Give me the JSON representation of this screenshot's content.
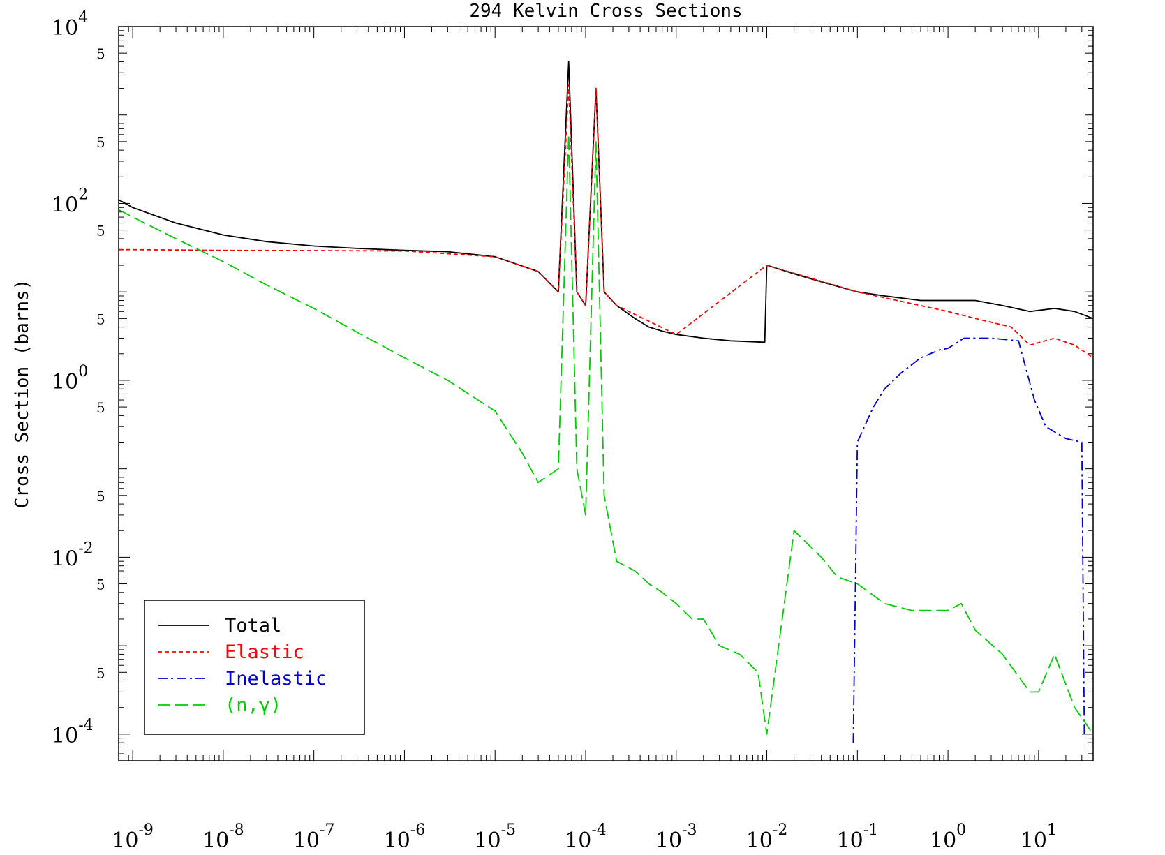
{
  "chart_data": {
    "type": "line",
    "title": "294 Kelvin Cross Sections",
    "xlabel": "",
    "ylabel": "Cross Section (barns)",
    "x_scale": "log",
    "y_scale": "log",
    "xlim": [
      7e-10,
      40
    ],
    "ylim": [
      5e-05,
      10000
    ],
    "x_ticks": [
      {
        "value": 1e-09,
        "base": "10",
        "exp": "-9"
      },
      {
        "value": 1e-08,
        "base": "10",
        "exp": "-8"
      },
      {
        "value": 1e-07,
        "base": "10",
        "exp": "-7"
      },
      {
        "value": 1e-06,
        "base": "10",
        "exp": "-6"
      },
      {
        "value": 1e-05,
        "base": "10",
        "exp": "-5"
      },
      {
        "value": 0.0001,
        "base": "10",
        "exp": "-4"
      },
      {
        "value": 0.001,
        "base": "10",
        "exp": "-3"
      },
      {
        "value": 0.01,
        "base": "10",
        "exp": "-2"
      },
      {
        "value": 0.1,
        "base": "10",
        "exp": "-1"
      },
      {
        "value": 1,
        "base": "10",
        "exp": "0"
      },
      {
        "value": 10,
        "base": "10",
        "exp": "1"
      }
    ],
    "y_major_ticks": [
      {
        "value": 10000,
        "base": "10",
        "exp": "4"
      },
      {
        "value": 100,
        "base": "10",
        "exp": "2"
      },
      {
        "value": 1,
        "base": "10",
        "exp": "0"
      },
      {
        "value": 0.01,
        "base": "10",
        "exp": "-2"
      },
      {
        "value": 0.0001,
        "base": "10",
        "exp": "-4"
      }
    ],
    "y_minor_labels": [
      {
        "value": 5000,
        "label": "5"
      },
      {
        "value": 500,
        "label": "5"
      },
      {
        "value": 50,
        "label": "5"
      },
      {
        "value": 5,
        "label": "5"
      },
      {
        "value": 0.5,
        "label": "5"
      },
      {
        "value": 0.05,
        "label": "5"
      },
      {
        "value": 0.005,
        "label": "5"
      },
      {
        "value": 0.0005,
        "label": "5"
      }
    ],
    "legend_position": "bottom-left",
    "series": [
      {
        "name": "Total",
        "color": "#000000",
        "style": "solid",
        "x": [
          7e-10,
          1e-09,
          3e-09,
          1e-08,
          3e-08,
          1e-07,
          3e-07,
          1e-06,
          3e-06,
          1e-05,
          3e-05,
          5e-05,
          6.5e-05,
          8e-05,
          0.0001,
          0.00013,
          0.00016,
          0.00022,
          0.00035,
          0.0005,
          0.0007,
          0.001,
          0.002,
          0.004,
          0.0095,
          0.01,
          0.02,
          0.04,
          0.1,
          0.2,
          0.5,
          1,
          2,
          4,
          8,
          15,
          25,
          40
        ],
        "y": [
          110,
          90,
          60,
          44,
          37,
          33,
          31,
          29.5,
          28.5,
          25,
          17,
          10,
          4000,
          10,
          7,
          2000,
          10,
          7,
          5,
          4,
          3.6,
          3.3,
          3.0,
          2.8,
          2.7,
          20,
          16,
          13,
          10,
          9,
          8,
          8,
          8,
          7,
          6,
          6.5,
          6,
          5
        ]
      },
      {
        "name": "Elastic",
        "color": "#ff0000",
        "style": "dashed",
        "x": [
          7e-10,
          1e-09,
          1e-08,
          1e-07,
          1e-06,
          1e-05,
          3e-05,
          5e-05,
          6.5e-05,
          8e-05,
          0.0001,
          0.00013,
          0.00016,
          0.00022,
          0.001,
          0.01,
          0.1,
          0.5,
          1,
          2,
          5,
          8,
          15,
          25,
          40
        ],
        "y": [
          30,
          30,
          29.5,
          29.3,
          29,
          25,
          17,
          10,
          2200,
          10,
          7,
          2000,
          10,
          7,
          3.3,
          20,
          10,
          7,
          6,
          5,
          4,
          2.5,
          3,
          2.5,
          1.8
        ]
      },
      {
        "name": "Inelastic",
        "color": "#0000cc",
        "style": "dashdot",
        "x": [
          0.09,
          0.1,
          0.15,
          0.2,
          0.3,
          0.5,
          0.8,
          1.0,
          1.5,
          3,
          6,
          9,
          12,
          20,
          30,
          32
        ],
        "y": [
          8e-05,
          0.2,
          0.5,
          0.8,
          1.2,
          1.8,
          2.2,
          2.3,
          3.0,
          3.0,
          2.8,
          0.6,
          0.3,
          0.22,
          0.2,
          0.0001
        ]
      },
      {
        "name": "(n,γ)",
        "color": "#00cc00",
        "style": "longdash",
        "x": [
          7e-10,
          1e-09,
          3e-09,
          1e-08,
          3e-08,
          1e-07,
          3e-07,
          1e-06,
          3e-06,
          1e-05,
          2e-05,
          3e-05,
          5e-05,
          6.5e-05,
          8e-05,
          0.0001,
          0.00013,
          0.00016,
          0.00022,
          0.00035,
          0.0005,
          0.0007,
          0.001,
          0.0015,
          0.002,
          0.003,
          0.005,
          0.008,
          0.01,
          0.02,
          0.04,
          0.06,
          0.1,
          0.2,
          0.4,
          1,
          1.4,
          2,
          4,
          8,
          10,
          15,
          25,
          40
        ],
        "y": [
          85,
          70,
          40,
          22,
          12,
          6.5,
          3.5,
          1.8,
          1.0,
          0.45,
          0.15,
          0.07,
          0.1,
          600,
          0.1,
          0.03,
          500,
          0.05,
          0.009,
          0.007,
          0.005,
          0.004,
          0.003,
          0.002,
          0.002,
          0.001,
          0.0008,
          0.0005,
          0.0001,
          0.02,
          0.01,
          0.006,
          0.005,
          0.003,
          0.0025,
          0.0025,
          0.003,
          0.0015,
          0.0008,
          0.0003,
          0.0003,
          0.0008,
          0.0002,
          0.0001
        ]
      }
    ]
  }
}
